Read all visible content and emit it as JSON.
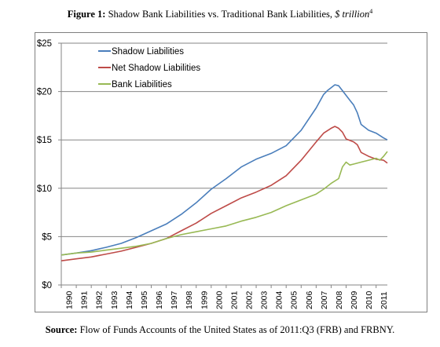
{
  "title": {
    "figure_label": "Figure 1:",
    "text": " Shadow Bank Liabilities vs.  Traditional Bank Liabilities, ",
    "unit": "$ trillion",
    "footnote": "4"
  },
  "source": {
    "label": "Source:",
    "text": " Flow of Funds Accounts of the United States as of 2011:Q3 (FRB) and FRBNY."
  },
  "chart_data": {
    "type": "line",
    "ylim": [
      0,
      25
    ],
    "xlim": [
      1990,
      2011.75
    ],
    "ytick_labels": [
      "$0",
      "$5",
      "$10",
      "$15",
      "$20",
      "$25"
    ],
    "yticks": [
      0,
      5,
      10,
      15,
      20,
      25
    ],
    "xtick_labels": [
      "1990",
      "1991",
      "1992",
      "1993",
      "1994",
      "1995",
      "1996",
      "1997",
      "1998",
      "1999",
      "2000",
      "2001",
      "2002",
      "2003",
      "2004",
      "2005",
      "2006",
      "2007",
      "2008",
      "2009",
      "2010",
      "2011"
    ],
    "grid": true,
    "legend": "top-left",
    "colors": {
      "shadow": "#4a7ebb",
      "net": "#be4b48",
      "bank": "#98b954"
    },
    "series": [
      {
        "name": "Shadow Liabilities",
        "key": "shadow",
        "points": [
          [
            1990,
            3.1
          ],
          [
            1991,
            3.3
          ],
          [
            1992,
            3.55
          ],
          [
            1993,
            3.9
          ],
          [
            1994,
            4.3
          ],
          [
            1995,
            4.9
          ],
          [
            1996,
            5.6
          ],
          [
            1997,
            6.3
          ],
          [
            1998,
            7.3
          ],
          [
            1999,
            8.5
          ],
          [
            2000,
            9.9
          ],
          [
            2001,
            11.0
          ],
          [
            2002,
            12.2
          ],
          [
            2003,
            13.0
          ],
          [
            2004,
            13.6
          ],
          [
            2005,
            14.4
          ],
          [
            2006,
            16.0
          ],
          [
            2007,
            18.3
          ],
          [
            2007.5,
            19.7
          ],
          [
            2007.75,
            20.1
          ],
          [
            2008,
            20.4
          ],
          [
            2008.25,
            20.7
          ],
          [
            2008.5,
            20.6
          ],
          [
            2008.75,
            20.1
          ],
          [
            2009,
            19.6
          ],
          [
            2009.25,
            19.1
          ],
          [
            2009.5,
            18.6
          ],
          [
            2009.75,
            17.8
          ],
          [
            2010,
            16.6
          ],
          [
            2010.5,
            16.0
          ],
          [
            2011,
            15.7
          ],
          [
            2011.5,
            15.2
          ],
          [
            2011.75,
            15.0
          ]
        ]
      },
      {
        "name": "Net Shadow Liabilities",
        "key": "net",
        "points": [
          [
            1990,
            2.5
          ],
          [
            1991,
            2.7
          ],
          [
            1992,
            2.9
          ],
          [
            1993,
            3.2
          ],
          [
            1994,
            3.5
          ],
          [
            1995,
            3.9
          ],
          [
            1996,
            4.3
          ],
          [
            1997,
            4.8
          ],
          [
            1998,
            5.6
          ],
          [
            1999,
            6.4
          ],
          [
            2000,
            7.4
          ],
          [
            2001,
            8.2
          ],
          [
            2002,
            9.0
          ],
          [
            2003,
            9.6
          ],
          [
            2004,
            10.3
          ],
          [
            2005,
            11.3
          ],
          [
            2006,
            12.9
          ],
          [
            2007,
            14.8
          ],
          [
            2007.5,
            15.7
          ],
          [
            2008,
            16.2
          ],
          [
            2008.25,
            16.4
          ],
          [
            2008.5,
            16.2
          ],
          [
            2008.75,
            15.8
          ],
          [
            2009,
            15.1
          ],
          [
            2009.5,
            14.8
          ],
          [
            2009.75,
            14.5
          ],
          [
            2010,
            13.7
          ],
          [
            2010.5,
            13.3
          ],
          [
            2011,
            13.0
          ],
          [
            2011.5,
            12.9
          ],
          [
            2011.75,
            12.6
          ]
        ]
      },
      {
        "name": "Bank Liabilities",
        "key": "bank",
        "points": [
          [
            1990,
            3.1
          ],
          [
            1991,
            3.3
          ],
          [
            1992,
            3.4
          ],
          [
            1993,
            3.6
          ],
          [
            1994,
            3.8
          ],
          [
            1995,
            4.0
          ],
          [
            1996,
            4.3
          ],
          [
            1997,
            4.8
          ],
          [
            1998,
            5.2
          ],
          [
            1999,
            5.5
          ],
          [
            2000,
            5.8
          ],
          [
            2001,
            6.1
          ],
          [
            2002,
            6.6
          ],
          [
            2003,
            7.0
          ],
          [
            2004,
            7.5
          ],
          [
            2005,
            8.2
          ],
          [
            2006,
            8.8
          ],
          [
            2007,
            9.4
          ],
          [
            2007.5,
            9.9
          ],
          [
            2008,
            10.5
          ],
          [
            2008.5,
            11.0
          ],
          [
            2008.75,
            12.2
          ],
          [
            2009,
            12.7
          ],
          [
            2009.25,
            12.4
          ],
          [
            2009.5,
            12.5
          ],
          [
            2010,
            12.7
          ],
          [
            2010.5,
            12.9
          ],
          [
            2011,
            13.1
          ],
          [
            2011.25,
            12.9
          ],
          [
            2011.5,
            13.3
          ],
          [
            2011.75,
            13.8
          ]
        ]
      }
    ]
  }
}
